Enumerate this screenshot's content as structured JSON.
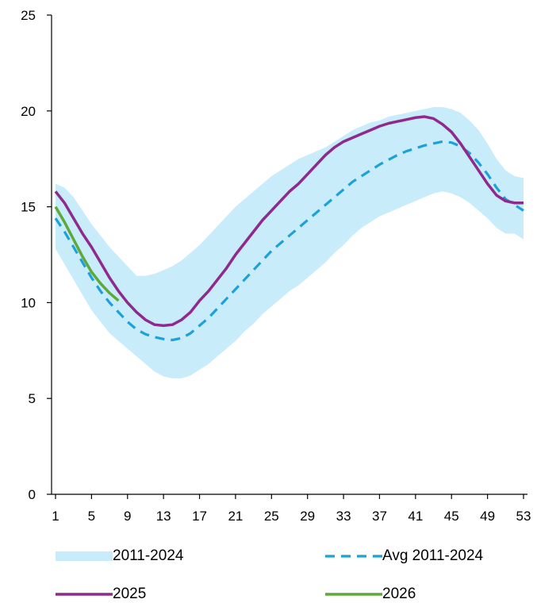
{
  "chart_data": {
    "type": "line",
    "title": "",
    "xlabel": "",
    "ylabel": "",
    "xlim": [
      1,
      53
    ],
    "ylim": [
      0,
      25
    ],
    "x_ticks": [
      1,
      5,
      9,
      13,
      17,
      21,
      25,
      29,
      33,
      37,
      41,
      45,
      49,
      53
    ],
    "y_ticks": [
      0,
      5,
      10,
      15,
      20,
      25
    ],
    "grid": false,
    "legend_placement": "bottom",
    "band": {
      "name": "2011-2024",
      "color": "#c9ecfb",
      "x": [
        1,
        2,
        3,
        4,
        5,
        6,
        7,
        8,
        9,
        10,
        11,
        12,
        13,
        14,
        15,
        16,
        17,
        18,
        19,
        20,
        21,
        22,
        23,
        24,
        25,
        26,
        27,
        28,
        29,
        30,
        31,
        32,
        33,
        34,
        35,
        36,
        37,
        38,
        39,
        40,
        41,
        42,
        43,
        44,
        45,
        46,
        47,
        48,
        49,
        50,
        51,
        52,
        53
      ],
      "upper": [
        16.2,
        16.0,
        15.5,
        14.8,
        14.1,
        13.5,
        12.9,
        12.4,
        11.9,
        11.4,
        11.4,
        11.5,
        11.7,
        11.9,
        12.2,
        12.6,
        13.0,
        13.5,
        14.0,
        14.5,
        15.0,
        15.4,
        15.8,
        16.2,
        16.6,
        16.9,
        17.2,
        17.5,
        17.7,
        17.9,
        18.1,
        18.4,
        18.7,
        19.0,
        19.2,
        19.4,
        19.5,
        19.7,
        19.8,
        19.9,
        20.0,
        20.1,
        20.2,
        20.2,
        20.1,
        19.9,
        19.5,
        19.0,
        18.3,
        17.5,
        16.9,
        16.6,
        16.5
      ],
      "lower": [
        12.8,
        12.0,
        11.2,
        10.4,
        9.6,
        9.0,
        8.4,
        8.0,
        7.6,
        7.2,
        6.8,
        6.4,
        6.15,
        6.05,
        6.05,
        6.2,
        6.5,
        6.8,
        7.2,
        7.6,
        8.0,
        8.5,
        8.9,
        9.4,
        9.8,
        10.2,
        10.6,
        10.9,
        11.3,
        11.7,
        12.1,
        12.6,
        13.0,
        13.5,
        13.9,
        14.2,
        14.5,
        14.7,
        14.9,
        15.1,
        15.3,
        15.5,
        15.7,
        15.8,
        15.7,
        15.5,
        15.2,
        14.8,
        14.4,
        13.9,
        13.6,
        13.6,
        13.3
      ]
    },
    "series": [
      {
        "name": "Avg 2011-2024",
        "color": "#1da1d8",
        "style": "dashed",
        "x": [
          1,
          2,
          3,
          4,
          5,
          6,
          7,
          8,
          9,
          10,
          11,
          12,
          13,
          14,
          15,
          16,
          17,
          18,
          19,
          20,
          21,
          22,
          23,
          24,
          25,
          26,
          27,
          28,
          29,
          30,
          31,
          32,
          33,
          34,
          35,
          36,
          37,
          38,
          39,
          40,
          41,
          42,
          43,
          44,
          45,
          46,
          47,
          48,
          49,
          50,
          51,
          52,
          53
        ],
        "values": [
          14.4,
          13.7,
          12.9,
          12.1,
          11.3,
          10.6,
          10.0,
          9.5,
          9.0,
          8.6,
          8.35,
          8.2,
          8.1,
          8.05,
          8.15,
          8.4,
          8.8,
          9.2,
          9.7,
          10.2,
          10.7,
          11.2,
          11.7,
          12.2,
          12.7,
          13.1,
          13.5,
          13.9,
          14.3,
          14.7,
          15.1,
          15.5,
          15.9,
          16.3,
          16.6,
          16.9,
          17.2,
          17.45,
          17.7,
          17.9,
          18.05,
          18.2,
          18.3,
          18.4,
          18.35,
          18.15,
          17.8,
          17.3,
          16.7,
          16.0,
          15.4,
          15.1,
          14.8
        ]
      },
      {
        "name": "2025",
        "color": "#8e2a8e",
        "style": "solid",
        "x": [
          1,
          2,
          3,
          4,
          5,
          6,
          7,
          8,
          9,
          10,
          11,
          12,
          13,
          14,
          15,
          16,
          17,
          18,
          19,
          20,
          21,
          22,
          23,
          24,
          25,
          26,
          27,
          28,
          29,
          30,
          31,
          32,
          33,
          34,
          35,
          36,
          37,
          38,
          39,
          40,
          41,
          42,
          43,
          44,
          45,
          46,
          47,
          48,
          49,
          50,
          51,
          52,
          53
        ],
        "values": [
          15.8,
          15.2,
          14.4,
          13.6,
          12.9,
          12.1,
          11.3,
          10.6,
          10.0,
          9.5,
          9.1,
          8.85,
          8.8,
          8.85,
          9.1,
          9.5,
          10.1,
          10.6,
          11.2,
          11.8,
          12.5,
          13.1,
          13.7,
          14.3,
          14.8,
          15.3,
          15.8,
          16.2,
          16.7,
          17.2,
          17.7,
          18.1,
          18.4,
          18.6,
          18.8,
          19.0,
          19.2,
          19.35,
          19.45,
          19.55,
          19.65,
          19.7,
          19.6,
          19.3,
          18.9,
          18.3,
          17.6,
          16.9,
          16.2,
          15.6,
          15.3,
          15.2,
          15.2
        ]
      },
      {
        "name": "2026",
        "color": "#5fa83a",
        "style": "solid",
        "x": [
          1,
          2,
          3,
          4,
          5,
          6,
          7,
          8
        ],
        "values": [
          15.0,
          14.2,
          13.3,
          12.4,
          11.6,
          11.0,
          10.5,
          10.1
        ]
      }
    ]
  },
  "legend": {
    "band_label": "2011-2024",
    "avg_label": "Avg 2011-2024",
    "y2025_label": "2025",
    "y2026_label": "2026"
  }
}
